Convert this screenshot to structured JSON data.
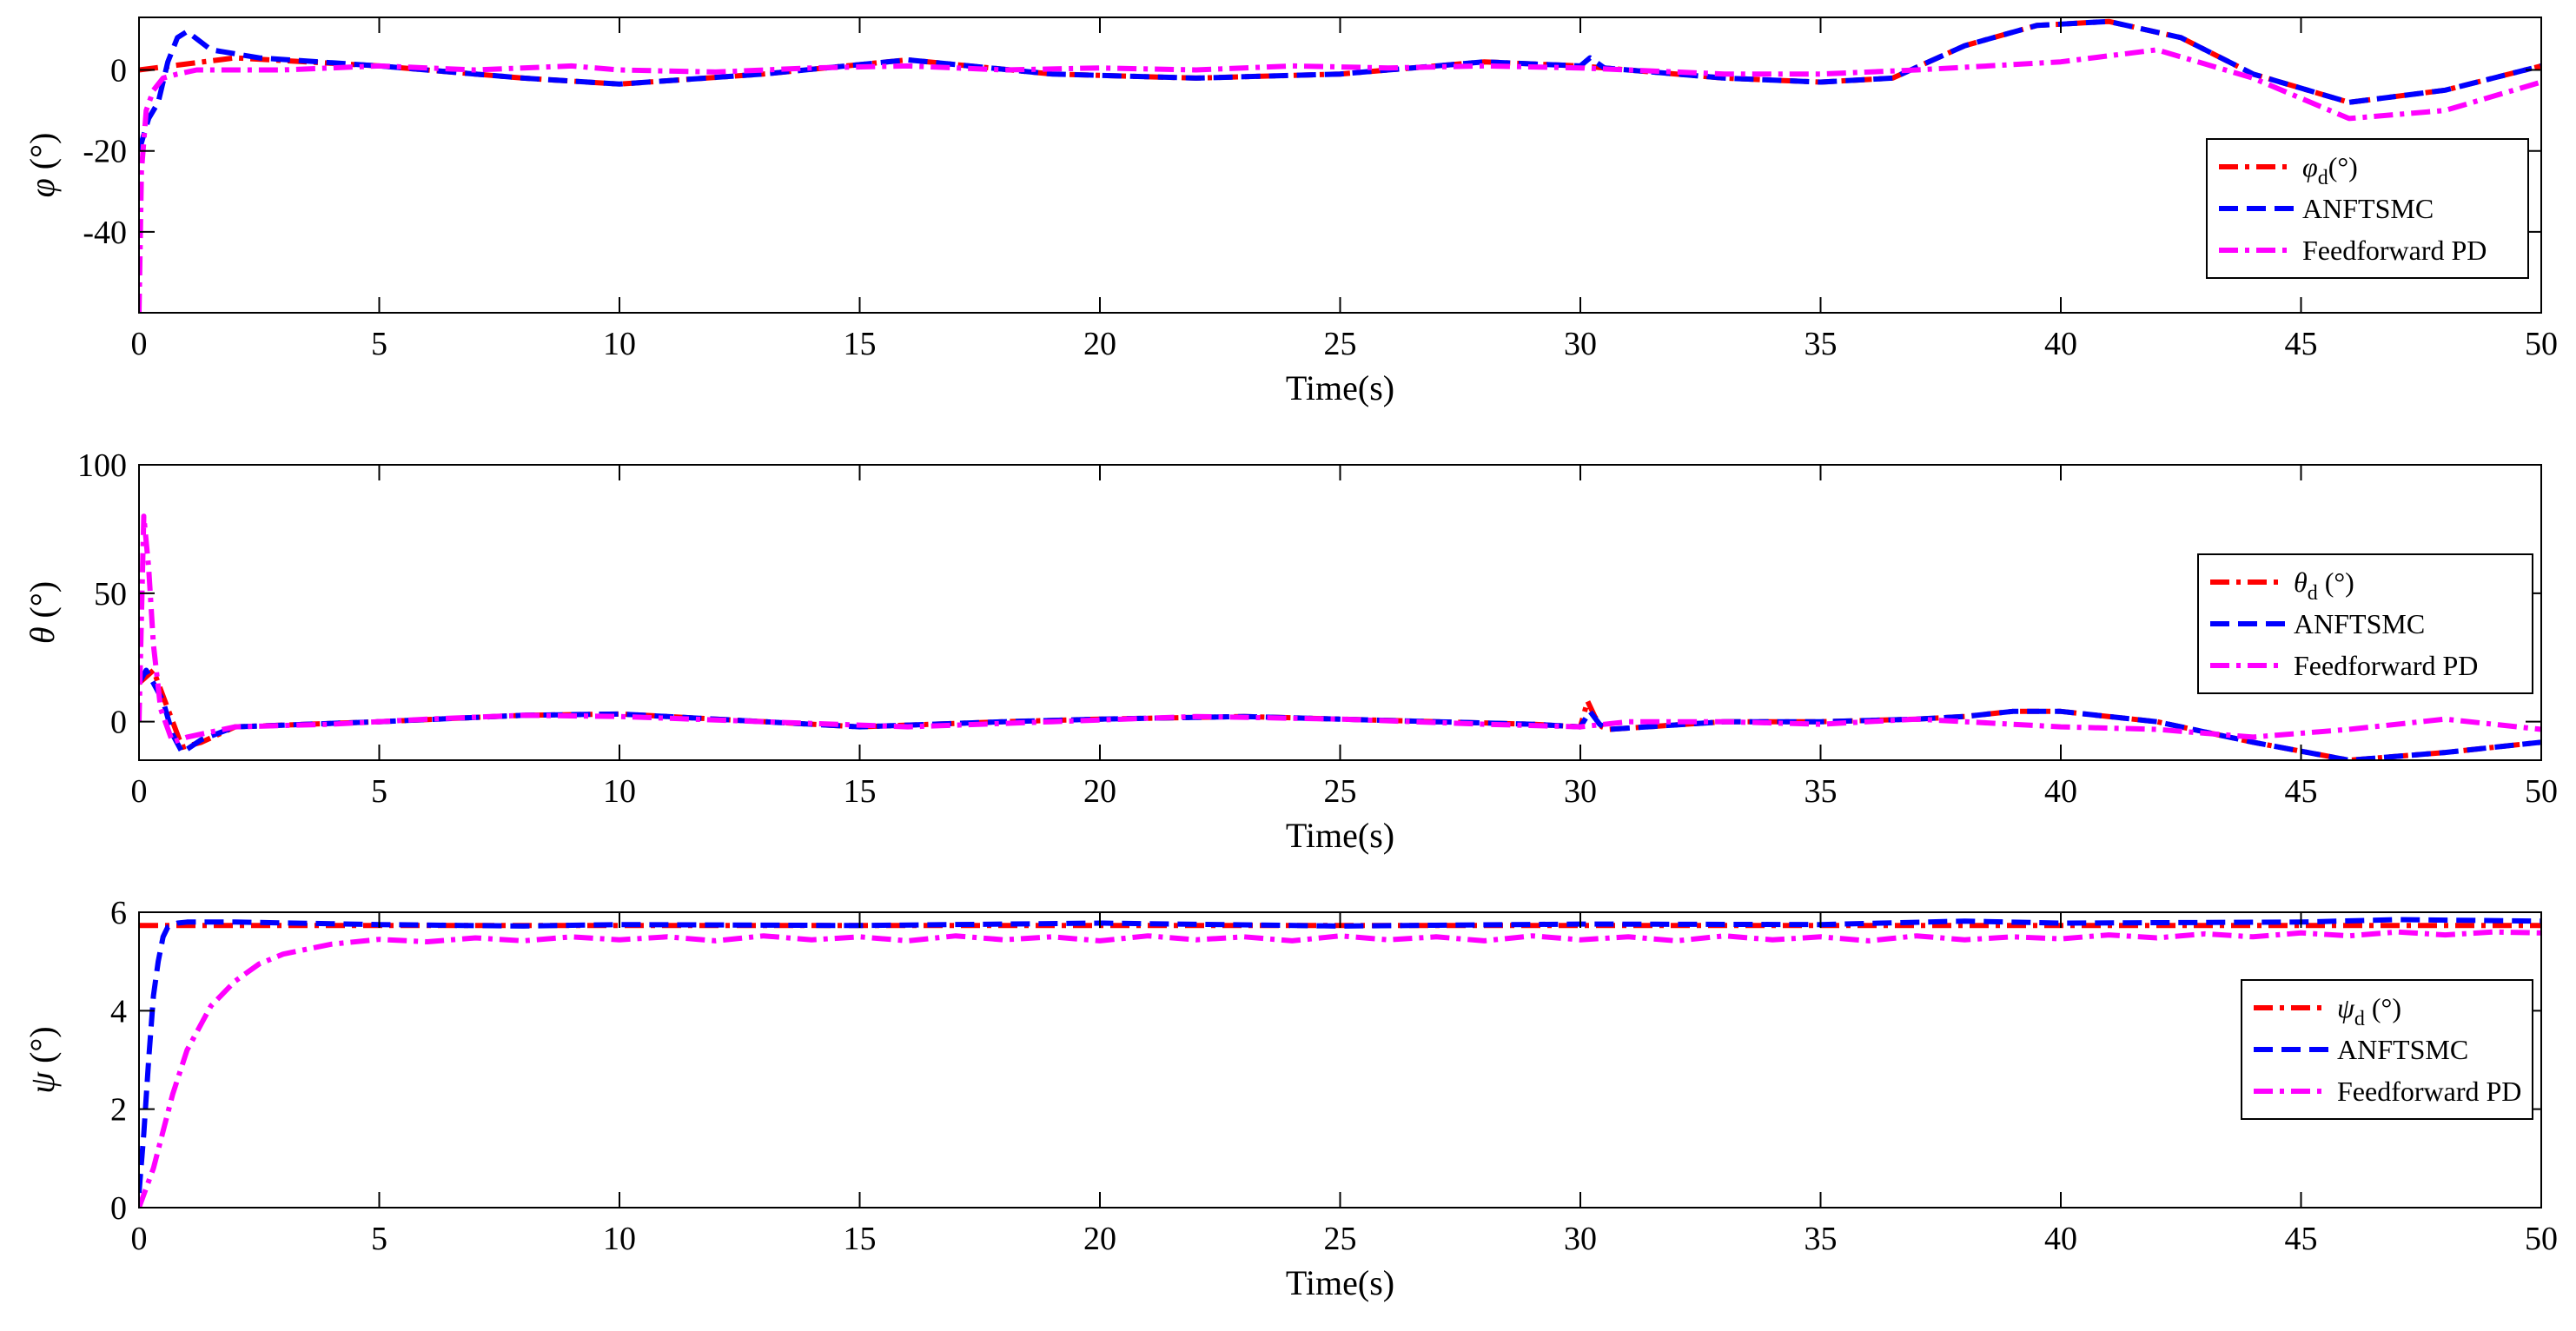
{
  "chart_data": [
    {
      "type": "line",
      "xlabel": "Time(s)",
      "ylabel_symbol": "φ",
      "ylabel_unit": " (°)",
      "xlim": [
        0,
        50
      ],
      "ylim": [
        -60,
        13
      ],
      "xticks": [
        0,
        5,
        10,
        15,
        20,
        25,
        30,
        35,
        40,
        45,
        50
      ],
      "yticks": [
        0,
        -20,
        -40
      ],
      "legend_position": "bottom-right",
      "legend": [
        {
          "symbol": "φ",
          "subscript": "d",
          "suffix": "(°)"
        },
        {
          "text": "ANFTSMC"
        },
        {
          "text": "Feedforward PD"
        }
      ],
      "series": [
        {
          "name": "φd(°)",
          "color": "#ff0000",
          "dash": "dashdot",
          "x": [
            0,
            2,
            5,
            8,
            10,
            13,
            16,
            19,
            22,
            25,
            28,
            30,
            33,
            35,
            36.5,
            38,
            39.5,
            41,
            42.5,
            44,
            46,
            48,
            50
          ],
          "y": [
            0,
            3,
            1,
            -2,
            -3.5,
            -1,
            2.5,
            -1,
            -2,
            -1,
            2,
            1,
            -2,
            -3,
            -2,
            6,
            11,
            12,
            8,
            -1,
            -8,
            -5,
            1
          ]
        },
        {
          "name": "ANFTSMC",
          "color": "#0000ff",
          "dash": "dashed",
          "x": [
            0,
            0.2,
            0.4,
            0.6,
            0.8,
            1,
            1.5,
            2,
            2.5,
            5,
            8,
            10,
            13,
            16,
            19,
            22,
            25,
            28,
            30,
            30.2,
            30.5,
            33,
            35,
            36.5,
            38,
            39.5,
            41,
            42.5,
            44,
            46,
            48,
            50
          ],
          "y": [
            -20,
            -12,
            -8,
            2,
            8,
            9.5,
            5,
            4,
            3,
            1,
            -2,
            -3.5,
            -1,
            2.5,
            -1,
            -2,
            -1,
            2,
            1,
            3,
            0.5,
            -2,
            -3,
            -2,
            6,
            11,
            12,
            8,
            -1,
            -8,
            -5,
            1
          ]
        },
        {
          "name": "Feedforward PD",
          "color": "#ff00ff",
          "dash": "dashdot",
          "x": [
            0,
            0.05,
            0.15,
            0.3,
            0.5,
            0.8,
            1.2,
            2,
            3,
            5,
            7,
            9,
            10,
            12,
            14,
            16,
            18,
            20,
            22,
            24,
            26,
            28,
            30,
            33,
            35,
            37,
            40,
            42,
            44,
            46,
            48,
            50
          ],
          "y": [
            -60,
            -25,
            -10,
            -5,
            -2,
            -1,
            0,
            0,
            0,
            1,
            0,
            1,
            0,
            -0.5,
            0.5,
            1,
            0,
            0.5,
            0,
            1,
            0.5,
            1,
            0.5,
            -1,
            -1,
            0,
            2,
            5,
            -2,
            -12,
            -10,
            -3
          ]
        }
      ]
    },
    {
      "type": "line",
      "xlabel": "Time(s)",
      "ylabel_symbol": "θ",
      "ylabel_unit": " (°)",
      "xlim": [
        0,
        50
      ],
      "ylim": [
        -15,
        100
      ],
      "xticks": [
        0,
        5,
        10,
        15,
        20,
        25,
        30,
        35,
        40,
        45,
        50
      ],
      "yticks": [
        0,
        50,
        100
      ],
      "legend_position": "right",
      "legend": [
        {
          "symbol": "θ",
          "subscript": "d",
          "suffix": " (°)"
        },
        {
          "text": "ANFTSMC"
        },
        {
          "text": "Feedforward PD"
        }
      ],
      "series": [
        {
          "name": "θd (°)",
          "color": "#ff0000",
          "dash": "dashdot",
          "x": [
            0,
            0.3,
            0.6,
            0.9,
            1.3,
            2,
            5,
            8,
            10,
            12,
            15,
            18,
            20,
            23,
            25,
            27,
            29,
            30,
            30.15,
            30.3,
            30.45,
            30.6,
            33,
            35,
            37,
            38,
            39,
            40,
            42,
            44,
            46,
            48,
            50
          ],
          "y": [
            15,
            20,
            5,
            -10,
            -8,
            -2,
            0,
            2.5,
            3,
            1,
            -2,
            0,
            1,
            2,
            1,
            0,
            -1,
            -2,
            8,
            2,
            -2,
            -3,
            0,
            0,
            1,
            2,
            4,
            4,
            0,
            -8,
            -15,
            -12,
            -8
          ]
        },
        {
          "name": "ANFTSMC",
          "color": "#0000ff",
          "dash": "dashed",
          "x": [
            0,
            0.15,
            0.3,
            0.5,
            0.7,
            0.9,
            1.3,
            2,
            5,
            8,
            10,
            12,
            15,
            18,
            20,
            23,
            25,
            27,
            29,
            30,
            30.2,
            30.4,
            30.6,
            33,
            35,
            37,
            38,
            39,
            40,
            42,
            44,
            46,
            48,
            50
          ],
          "y": [
            15,
            20,
            15,
            8,
            -5,
            -12,
            -7,
            -2,
            0,
            2.5,
            3,
            1,
            -2,
            0,
            1,
            2,
            1,
            0,
            -1,
            -2,
            4,
            -1,
            -3,
            0,
            0,
            1,
            2,
            4,
            4,
            0,
            -8,
            -15,
            -12,
            -8
          ]
        },
        {
          "name": "Feedforward PD",
          "color": "#ff00ff",
          "dash": "dashdot",
          "x": [
            0,
            0.1,
            0.2,
            0.3,
            0.45,
            0.7,
            1,
            1.5,
            2,
            4,
            6,
            8,
            10,
            13,
            16,
            19,
            22,
            25,
            28,
            30,
            31,
            33,
            35,
            37,
            38,
            40,
            42,
            44,
            46,
            48,
            50
          ],
          "y": [
            0,
            80,
            60,
            30,
            5,
            -8,
            -6,
            -4,
            -2,
            -1,
            1,
            2.5,
            2,
            0,
            -2,
            0,
            2,
            1,
            -1,
            -2,
            0,
            0,
            -1,
            1,
            0,
            -2,
            -3,
            -6,
            -3,
            1,
            -3
          ]
        }
      ]
    },
    {
      "type": "line",
      "xlabel": "Time(s)",
      "ylabel_symbol": "ψ",
      "ylabel_unit": " (°)",
      "xlim": [
        0,
        50
      ],
      "ylim": [
        0,
        6
      ],
      "xticks": [
        0,
        5,
        10,
        15,
        20,
        25,
        30,
        35,
        40,
        45,
        50
      ],
      "yticks": [
        0,
        2,
        4,
        6
      ],
      "legend_position": "bottom-right",
      "legend": [
        {
          "symbol": "ψ",
          "subscript": "d",
          "suffix": " (°)"
        },
        {
          "text": "ANFTSMC"
        },
        {
          "text": "Feedforward PD"
        }
      ],
      "series": [
        {
          "name": "ψd (°)",
          "color": "#ff0000",
          "dash": "dashdot",
          "x": [
            0,
            50
          ],
          "y": [
            5.73,
            5.73
          ]
        },
        {
          "name": "ANFTSMC",
          "color": "#0000ff",
          "dash": "dashed",
          "x": [
            0,
            0.1,
            0.2,
            0.3,
            0.4,
            0.5,
            0.6,
            0.8,
            1,
            2,
            5,
            8,
            10,
            15,
            20,
            25,
            30,
            35,
            38,
            40,
            45,
            47,
            50
          ],
          "y": [
            0.3,
            1.5,
            3,
            4.3,
            5,
            5.5,
            5.7,
            5.78,
            5.8,
            5.8,
            5.75,
            5.72,
            5.75,
            5.73,
            5.78,
            5.72,
            5.76,
            5.75,
            5.82,
            5.78,
            5.8,
            5.85,
            5.82
          ]
        },
        {
          "name": "Feedforward PD",
          "color": "#ff00ff",
          "dash": "dashdot",
          "x": [
            0,
            0.3,
            0.7,
            1,
            1.5,
            2,
            2.5,
            3,
            4,
            5,
            6,
            7,
            8,
            9,
            10,
            11,
            12,
            13,
            14,
            15,
            16,
            17,
            18,
            19,
            20,
            21,
            22,
            23,
            24,
            25,
            26,
            27,
            28,
            29,
            30,
            31,
            32,
            33,
            34,
            35,
            36,
            37,
            38,
            39,
            40,
            41,
            42,
            43,
            44,
            45,
            46,
            47,
            48,
            49,
            50
          ],
          "y": [
            0,
            0.8,
            2.3,
            3.2,
            4.1,
            4.6,
            4.95,
            5.15,
            5.35,
            5.45,
            5.4,
            5.48,
            5.42,
            5.5,
            5.44,
            5.5,
            5.42,
            5.52,
            5.44,
            5.5,
            5.42,
            5.52,
            5.44,
            5.5,
            5.42,
            5.52,
            5.44,
            5.5,
            5.42,
            5.52,
            5.44,
            5.5,
            5.42,
            5.52,
            5.44,
            5.5,
            5.42,
            5.52,
            5.44,
            5.5,
            5.42,
            5.52,
            5.44,
            5.5,
            5.46,
            5.54,
            5.48,
            5.56,
            5.5,
            5.58,
            5.52,
            5.6,
            5.54,
            5.6,
            5.58
          ]
        }
      ]
    }
  ]
}
